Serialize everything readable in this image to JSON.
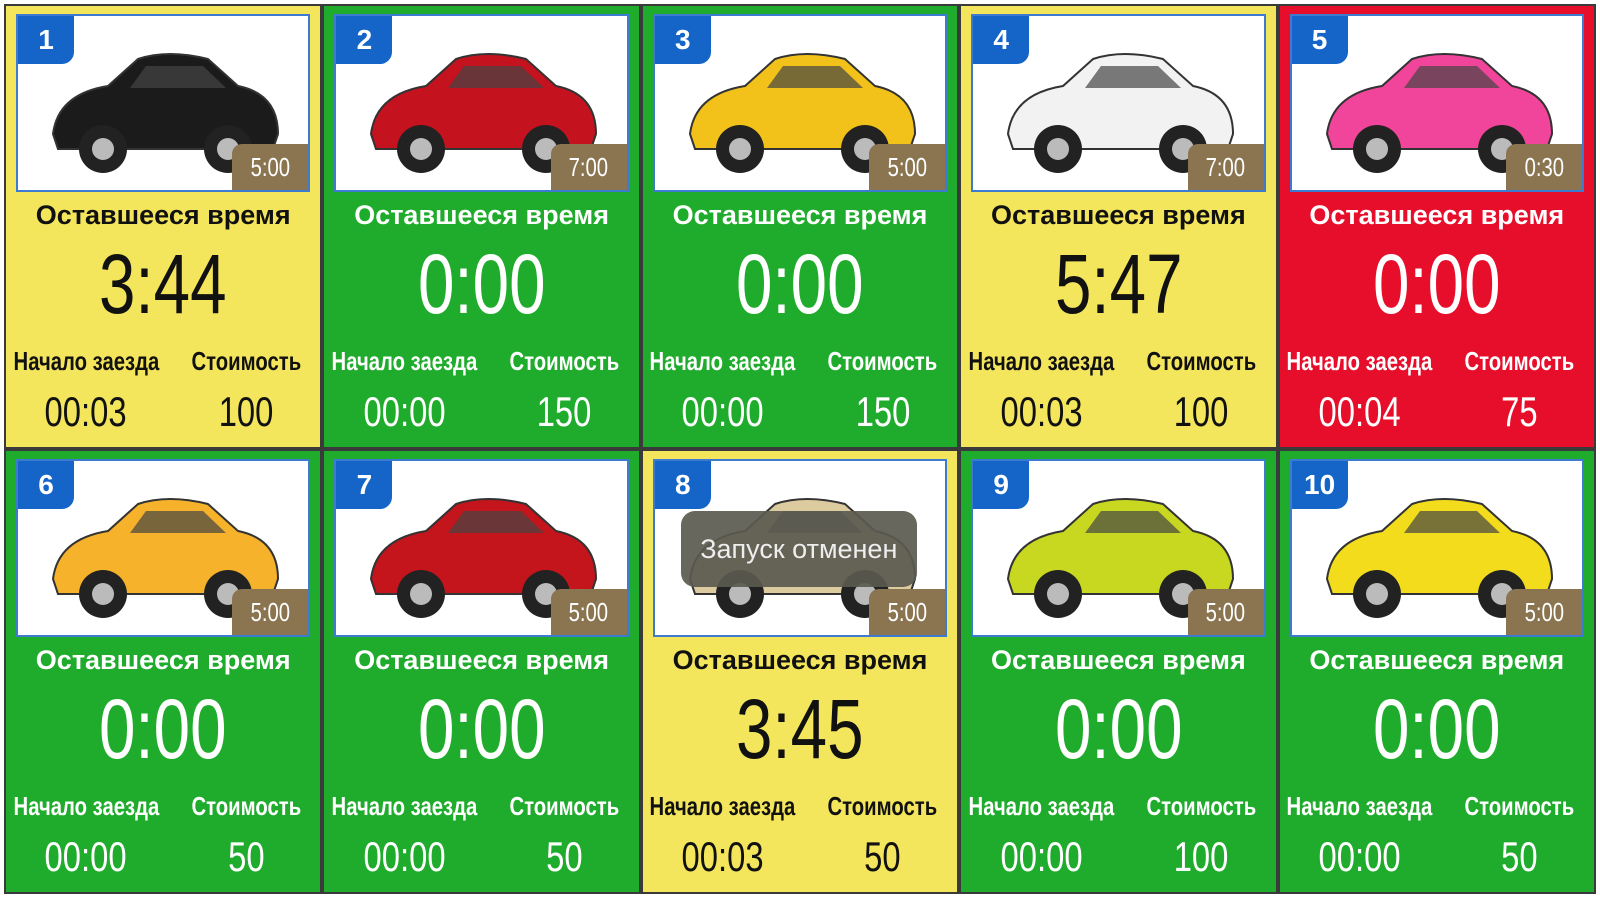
{
  "labels": {
    "remaining": "Оставшееся время",
    "start": "Начало заезда",
    "cost": "Стоимость"
  },
  "colors": {
    "yellow": "#f4e65c",
    "green": "#1fab2b",
    "red": "#e60e2b",
    "badge": "#1565c8",
    "duration": "#8a7550"
  },
  "toast": "Запуск отменен",
  "cars": [
    {
      "number": "1",
      "duration": "5:00",
      "remaining": "3:44",
      "start": "00:03",
      "cost": "100",
      "status": "yellow",
      "car_color": "#1b1b1b",
      "icon": "car-icon"
    },
    {
      "number": "2",
      "duration": "7:00",
      "remaining": "0:00",
      "start": "00:00",
      "cost": "150",
      "status": "green",
      "car_color": "#c4121e",
      "icon": "car-icon"
    },
    {
      "number": "3",
      "duration": "5:00",
      "remaining": "0:00",
      "start": "00:00",
      "cost": "150",
      "status": "green",
      "car_color": "#f2c21a",
      "icon": "car-icon"
    },
    {
      "number": "4",
      "duration": "7:00",
      "remaining": "5:47",
      "start": "00:03",
      "cost": "100",
      "status": "yellow",
      "car_color": "#f2f2f2",
      "icon": "car-icon"
    },
    {
      "number": "5",
      "duration": "0:30",
      "remaining": "0:00",
      "start": "00:04",
      "cost": "75",
      "status": "red",
      "car_color": "#f0459a",
      "icon": "car-icon"
    },
    {
      "number": "6",
      "duration": "5:00",
      "remaining": "0:00",
      "start": "00:00",
      "cost": "50",
      "status": "green",
      "car_color": "#f5b22a",
      "icon": "car-icon"
    },
    {
      "number": "7",
      "duration": "5:00",
      "remaining": "0:00",
      "start": "00:00",
      "cost": "50",
      "status": "green",
      "car_color": "#c4141c",
      "icon": "buggy-icon"
    },
    {
      "number": "8",
      "duration": "5:00",
      "remaining": "3:45",
      "start": "00:03",
      "cost": "50",
      "status": "yellow",
      "car_color": "#dccb9e",
      "icon": "car-icon"
    },
    {
      "number": "9",
      "duration": "5:00",
      "remaining": "0:00",
      "start": "00:00",
      "cost": "100",
      "status": "green",
      "car_color": "#c8d820",
      "icon": "quad-bike-icon"
    },
    {
      "number": "10",
      "duration": "5:00",
      "remaining": "0:00",
      "start": "00:00",
      "cost": "50",
      "status": "green",
      "car_color": "#f2dc1c",
      "icon": "motorbike-icon"
    }
  ]
}
